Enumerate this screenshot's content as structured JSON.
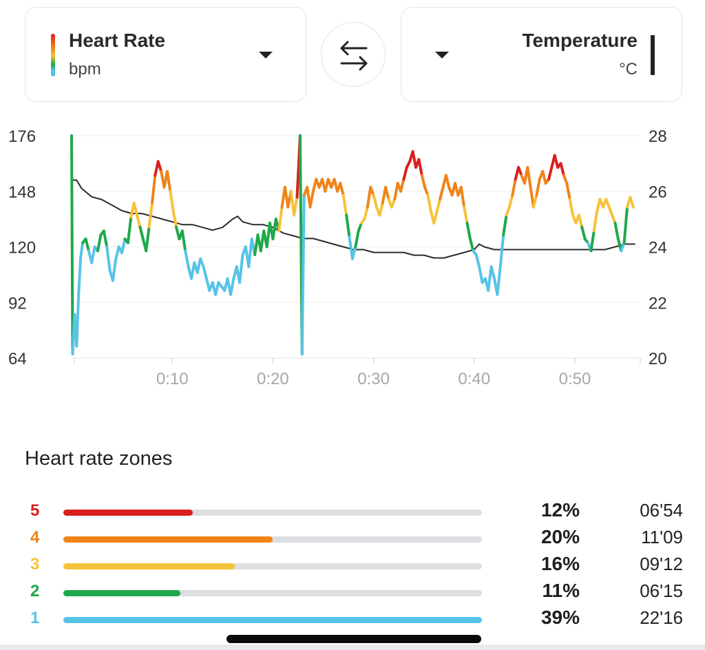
{
  "selector": {
    "left": {
      "title": "Heart Rate",
      "unit": "bpm"
    },
    "right": {
      "title": "Temperature",
      "unit": "°C"
    }
  },
  "colors": {
    "zone5": "#d9201f",
    "zone4": "#f08419",
    "zone3": "#f6c23a",
    "zone2": "#1fa84a",
    "zone1": "#57c3e6",
    "temperature_line": "#2b2b2b",
    "grid": "#eeeeee"
  },
  "chart_data": {
    "type": "line",
    "x_unit": "minutes",
    "xlim": [
      0,
      56.5
    ],
    "x_ticks": [
      10,
      20,
      30,
      40,
      50
    ],
    "x_tick_labels": [
      "0:10",
      "0:20",
      "0:30",
      "0:40",
      "0:50"
    ],
    "y_left": {
      "label": "bpm",
      "ticks": [
        176,
        148,
        120,
        92,
        64
      ],
      "ylim": [
        64,
        176
      ]
    },
    "y_right": {
      "label": "°C",
      "ticks": [
        28,
        26,
        24,
        22,
        20
      ],
      "ylim": [
        20,
        28
      ]
    },
    "zone_bounds_bpm": [
      121,
      133,
      144,
      157
    ],
    "series": [
      {
        "name": "Heart Rate",
        "axis": "left",
        "points": [
          [
            0,
            176
          ],
          [
            0.1,
            66
          ],
          [
            0.3,
            86
          ],
          [
            0.5,
            70
          ],
          [
            0.7,
            96
          ],
          [
            0.9,
            115
          ],
          [
            1.1,
            122
          ],
          [
            1.4,
            124
          ],
          [
            1.7,
            118
          ],
          [
            2.0,
            112
          ],
          [
            2.3,
            120
          ],
          [
            2.6,
            118
          ],
          [
            2.9,
            126
          ],
          [
            3.2,
            128
          ],
          [
            3.5,
            120
          ],
          [
            3.8,
            108
          ],
          [
            4.1,
            103
          ],
          [
            4.4,
            114
          ],
          [
            4.7,
            120
          ],
          [
            5.0,
            117
          ],
          [
            5.3,
            124
          ],
          [
            5.6,
            122
          ],
          [
            5.9,
            135
          ],
          [
            6.2,
            142
          ],
          [
            6.5,
            136
          ],
          [
            6.8,
            130
          ],
          [
            7.1,
            124
          ],
          [
            7.4,
            118
          ],
          [
            7.7,
            130
          ],
          [
            8.0,
            142
          ],
          [
            8.3,
            156
          ],
          [
            8.6,
            163
          ],
          [
            8.9,
            158
          ],
          [
            9.2,
            150
          ],
          [
            9.5,
            158
          ],
          [
            9.8,
            148
          ],
          [
            10.1,
            138
          ],
          [
            10.4,
            130
          ],
          [
            10.7,
            124
          ],
          [
            11.0,
            128
          ],
          [
            11.3,
            118
          ],
          [
            11.6,
            110
          ],
          [
            11.9,
            104
          ],
          [
            12.2,
            112
          ],
          [
            12.5,
            107
          ],
          [
            12.8,
            114
          ],
          [
            13.1,
            110
          ],
          [
            13.4,
            104
          ],
          [
            13.7,
            98
          ],
          [
            14.0,
            102
          ],
          [
            14.3,
            96
          ],
          [
            14.6,
            102
          ],
          [
            14.9,
            100
          ],
          [
            15.2,
            98
          ],
          [
            15.5,
            104
          ],
          [
            15.8,
            96
          ],
          [
            16.1,
            104
          ],
          [
            16.4,
            110
          ],
          [
            16.7,
            102
          ],
          [
            17.0,
            116
          ],
          [
            17.3,
            120
          ],
          [
            17.6,
            110
          ],
          [
            17.9,
            124
          ],
          [
            18.2,
            116
          ],
          [
            18.5,
            126
          ],
          [
            18.8,
            118
          ],
          [
            19.1,
            128
          ],
          [
            19.4,
            120
          ],
          [
            19.7,
            132
          ],
          [
            20.0,
            124
          ],
          [
            20.3,
            134
          ],
          [
            20.6,
            128
          ],
          [
            20.9,
            140
          ],
          [
            21.2,
            150
          ],
          [
            21.5,
            140
          ],
          [
            21.8,
            148
          ],
          [
            22.1,
            136
          ],
          [
            22.4,
            145
          ],
          [
            22.7,
            176
          ],
          [
            22.9,
            66
          ],
          [
            23.1,
            146
          ],
          [
            23.4,
            150
          ],
          [
            23.7,
            140
          ],
          [
            24.0,
            148
          ],
          [
            24.3,
            154
          ],
          [
            24.6,
            150
          ],
          [
            24.9,
            154
          ],
          [
            25.2,
            148
          ],
          [
            25.5,
            154
          ],
          [
            25.8,
            150
          ],
          [
            26.1,
            154
          ],
          [
            26.4,
            148
          ],
          [
            26.7,
            152
          ],
          [
            27.0,
            146
          ],
          [
            27.3,
            136
          ],
          [
            27.6,
            125
          ],
          [
            27.9,
            114
          ],
          [
            28.2,
            120
          ],
          [
            28.5,
            128
          ],
          [
            28.8,
            132
          ],
          [
            29.1,
            134
          ],
          [
            29.4,
            140
          ],
          [
            29.7,
            150
          ],
          [
            30.0,
            146
          ],
          [
            30.3,
            140
          ],
          [
            30.6,
            136
          ],
          [
            30.9,
            142
          ],
          [
            31.2,
            150
          ],
          [
            31.5,
            144
          ],
          [
            31.8,
            140
          ],
          [
            32.1,
            144
          ],
          [
            32.4,
            152
          ],
          [
            32.7,
            148
          ],
          [
            33.0,
            154
          ],
          [
            33.3,
            160
          ],
          [
            33.6,
            163
          ],
          [
            33.9,
            168
          ],
          [
            34.2,
            160
          ],
          [
            34.5,
            164
          ],
          [
            34.8,
            156
          ],
          [
            35.1,
            150
          ],
          [
            35.4,
            146
          ],
          [
            35.7,
            138
          ],
          [
            36.0,
            132
          ],
          [
            36.3,
            138
          ],
          [
            36.6,
            144
          ],
          [
            36.9,
            150
          ],
          [
            37.2,
            156
          ],
          [
            37.5,
            150
          ],
          [
            37.8,
            146
          ],
          [
            38.1,
            152
          ],
          [
            38.4,
            146
          ],
          [
            38.7,
            150
          ],
          [
            39.0,
            140
          ],
          [
            39.3,
            132
          ],
          [
            39.6,
            124
          ],
          [
            39.9,
            118
          ],
          [
            40.2,
            116
          ],
          [
            40.5,
            110
          ],
          [
            40.8,
            102
          ],
          [
            41.1,
            104
          ],
          [
            41.4,
            98
          ],
          [
            41.7,
            110
          ],
          [
            42.0,
            104
          ],
          [
            42.3,
            96
          ],
          [
            42.6,
            110
          ],
          [
            42.9,
            126
          ],
          [
            43.2,
            136
          ],
          [
            43.5,
            140
          ],
          [
            43.8,
            146
          ],
          [
            44.1,
            154
          ],
          [
            44.4,
            160
          ],
          [
            44.7,
            156
          ],
          [
            45.0,
            152
          ],
          [
            45.3,
            160
          ],
          [
            45.6,
            150
          ],
          [
            45.9,
            140
          ],
          [
            46.2,
            146
          ],
          [
            46.5,
            154
          ],
          [
            46.8,
            158
          ],
          [
            47.1,
            152
          ],
          [
            47.4,
            154
          ],
          [
            47.7,
            160
          ],
          [
            48.0,
            166
          ],
          [
            48.3,
            160
          ],
          [
            48.6,
            162
          ],
          [
            48.9,
            156
          ],
          [
            49.2,
            152
          ],
          [
            49.5,
            144
          ],
          [
            49.8,
            136
          ],
          [
            50.1,
            132
          ],
          [
            50.4,
            136
          ],
          [
            50.7,
            130
          ],
          [
            51.0,
            124
          ],
          [
            51.3,
            122
          ],
          [
            51.6,
            118
          ],
          [
            51.9,
            128
          ],
          [
            52.2,
            138
          ],
          [
            52.5,
            144
          ],
          [
            52.8,
            140
          ],
          [
            53.1,
            144
          ],
          [
            53.4,
            140
          ],
          [
            53.7,
            136
          ],
          [
            54.0,
            132
          ],
          [
            54.3,
            124
          ],
          [
            54.6,
            118
          ],
          [
            54.9,
            122
          ],
          [
            55.2,
            140
          ],
          [
            55.5,
            145
          ],
          [
            55.8,
            140
          ]
        ]
      },
      {
        "name": "Temperature",
        "axis": "right",
        "points": [
          [
            0.1,
            26.4
          ],
          [
            0.5,
            26.4
          ],
          [
            1,
            26.1
          ],
          [
            2,
            25.8
          ],
          [
            3,
            25.7
          ],
          [
            4,
            25.5
          ],
          [
            5,
            25.3
          ],
          [
            6,
            25.2
          ],
          [
            7,
            25.2
          ],
          [
            8,
            25.1
          ],
          [
            9,
            25.0
          ],
          [
            10,
            24.9
          ],
          [
            11,
            24.8
          ],
          [
            12,
            24.8
          ],
          [
            13,
            24.7
          ],
          [
            14,
            24.6
          ],
          [
            15,
            24.7
          ],
          [
            16,
            25.0
          ],
          [
            16.5,
            25.1
          ],
          [
            17,
            24.9
          ],
          [
            18,
            24.8
          ],
          [
            19,
            24.8
          ],
          [
            20,
            24.7
          ],
          [
            21,
            24.5
          ],
          [
            22,
            24.4
          ],
          [
            23,
            24.3
          ],
          [
            24,
            24.3
          ],
          [
            25,
            24.2
          ],
          [
            26,
            24.1
          ],
          [
            27,
            24.0
          ],
          [
            28,
            23.9
          ],
          [
            29,
            23.9
          ],
          [
            30,
            23.8
          ],
          [
            31,
            23.8
          ],
          [
            32,
            23.8
          ],
          [
            33,
            23.8
          ],
          [
            34,
            23.7
          ],
          [
            35,
            23.7
          ],
          [
            36,
            23.6
          ],
          [
            37,
            23.6
          ],
          [
            38,
            23.7
          ],
          [
            39,
            23.8
          ],
          [
            40,
            23.9
          ],
          [
            40.5,
            24.1
          ],
          [
            41,
            24.0
          ],
          [
            42,
            23.9
          ],
          [
            43,
            23.9
          ],
          [
            44,
            23.9
          ],
          [
            45,
            23.9
          ],
          [
            46,
            23.9
          ],
          [
            47,
            23.9
          ],
          [
            48,
            23.9
          ],
          [
            49,
            23.9
          ],
          [
            50,
            23.9
          ],
          [
            51,
            23.9
          ],
          [
            52,
            23.9
          ],
          [
            53,
            23.9
          ],
          [
            54,
            24.0
          ],
          [
            55,
            24.1
          ],
          [
            56,
            24.1
          ]
        ]
      }
    ]
  },
  "zones": {
    "title": "Heart rate zones",
    "rows": [
      {
        "zone": "5",
        "percent": "12%",
        "duration": "06'54",
        "fill": 0.31,
        "color": "#d9201f"
      },
      {
        "zone": "4",
        "percent": "20%",
        "duration": "11'09",
        "fill": 0.5,
        "color": "#f08419"
      },
      {
        "zone": "3",
        "percent": "16%",
        "duration": "09'12",
        "fill": 0.41,
        "color": "#f6c23a"
      },
      {
        "zone": "2",
        "percent": "11%",
        "duration": "06'15",
        "fill": 0.28,
        "color": "#1fa84a"
      },
      {
        "zone": "1",
        "percent": "39%",
        "duration": "22'16",
        "fill": 1.0,
        "color": "#57c3e6"
      }
    ]
  }
}
